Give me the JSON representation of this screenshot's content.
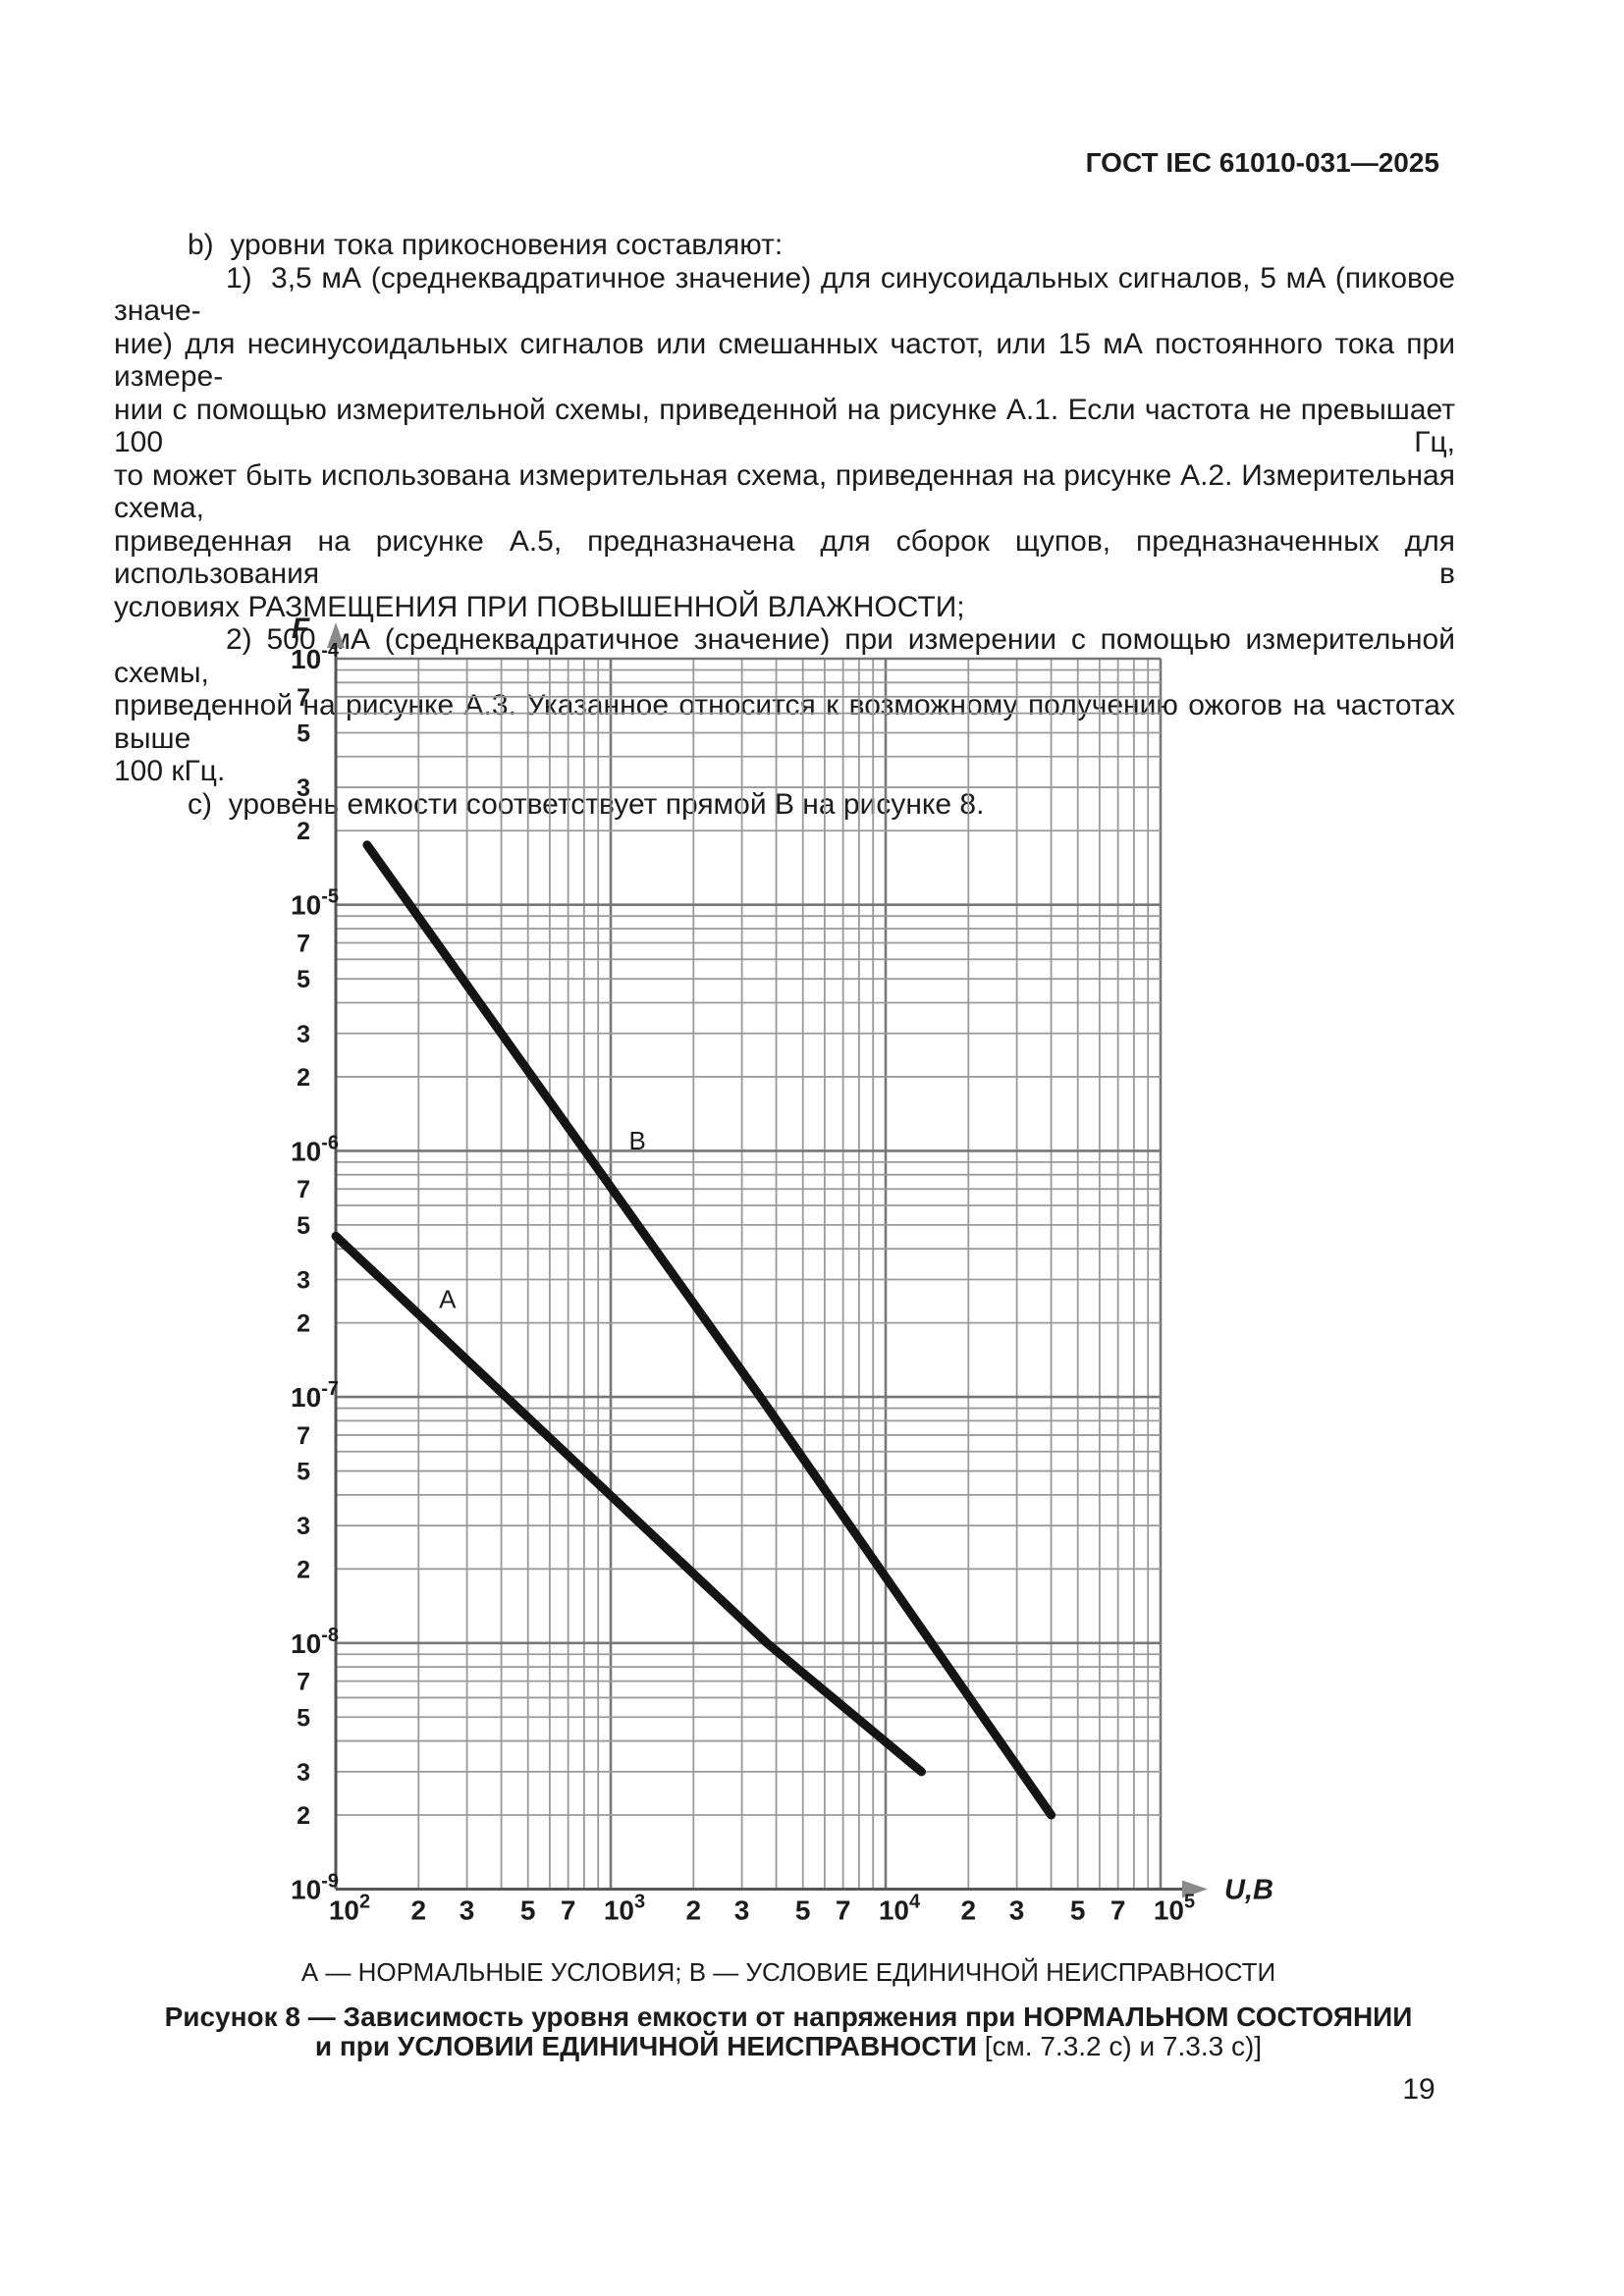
{
  "page": {
    "header": "ГОСТ IEC 61010-031—2025",
    "page_number": "19"
  },
  "body": {
    "lines": [
      {
        "text": "b)  уровни тока прикосновения составляют:"
      },
      {
        "text": "1)  3,5 мА (среднеквадратичное значение) для синусоидальных сигналов, 5 мА (пиковое значе-"
      },
      {
        "text": "ние) для несинусоидальных сигналов или смешанных частот, или 15 мА постоянного тока при измере-"
      },
      {
        "text": "нии с помощью измерительной схемы, приведенной на рисунке А.1. Если частота не превышает 100 Гц,"
      },
      {
        "text": "то может быть использована измерительная схема, приведенная на рисунке А.2. Измерительная схема,"
      },
      {
        "text": "приведенная на рисунке А.5, предназначена для сборок щупов, предназначенных для использования в"
      },
      {
        "text": "условиях РАЗМЕЩЕНИЯ ПРИ ПОВЫШЕННОЙ ВЛАЖНОСТИ;"
      },
      {
        "text": "2) 500 мА (среднеквадратичное значение) при измерении с помощью измерительной схемы,"
      },
      {
        "text": "приведенной на рисунке А.3. Указанное относится к возможному получению ожогов на частотах выше"
      },
      {
        "text": "100 кГц."
      },
      {
        "text": "c)  уровень емкости соответствует прямой В на рисунке 8."
      }
    ]
  },
  "chart_data": {
    "type": "line",
    "title": "",
    "xlabel": "U,В",
    "ylabel": "F",
    "x_scale": "log",
    "y_scale": "log",
    "xlim": [
      100,
      100000
    ],
    "ylim": [
      1e-09,
      0.0001
    ],
    "grid": "full logarithmic minor grid (2–9) on both axes",
    "x_decade_exponents": [
      2,
      3,
      4,
      5
    ],
    "y_decade_exponents": [
      -4,
      -5,
      -6,
      -7,
      -8,
      -9
    ],
    "x_minor_labels": [
      2,
      3,
      5,
      7
    ],
    "y_minor_labels": [
      7,
      5,
      3,
      2
    ],
    "axis_color": "#555555",
    "grid_minor_color": "#9a9a9a",
    "grid_major_color": "#777777",
    "curve_color": "#141414",
    "series": [
      {
        "name": "A",
        "points": [
          [
            100,
            4.5e-07
          ],
          [
            3700,
            1e-08
          ],
          [
            13500,
            3e-09
          ]
        ],
        "label_pos": [
          255,
          2.5e-07
        ]
      },
      {
        "name": "B",
        "points": [
          [
            130,
            1.75e-05
          ],
          [
            3500,
            1e-07
          ],
          [
            40000,
            2e-09
          ]
        ],
        "label_pos": [
          1250,
          1.1e-06
        ]
      }
    ]
  },
  "legend": "А — НОРМАЛЬНЫЕ УСЛОВИЯ; В — УСЛОВИЕ ЕДИНИЧНОЙ НЕИСПРАВНОСТИ",
  "caption": {
    "line1": "Рисунок 8 — Зависимость уровня емкости от напряжения при НОРМАЛЬНОМ СОСТОЯНИИ",
    "line2_bold": "и при УСЛОВИИ ЕДИНИЧНОЙ НЕИСПРАВНОСТИ ",
    "line2_ref": "[см. 7.3.2 с) и 7.3.3 с)]"
  }
}
